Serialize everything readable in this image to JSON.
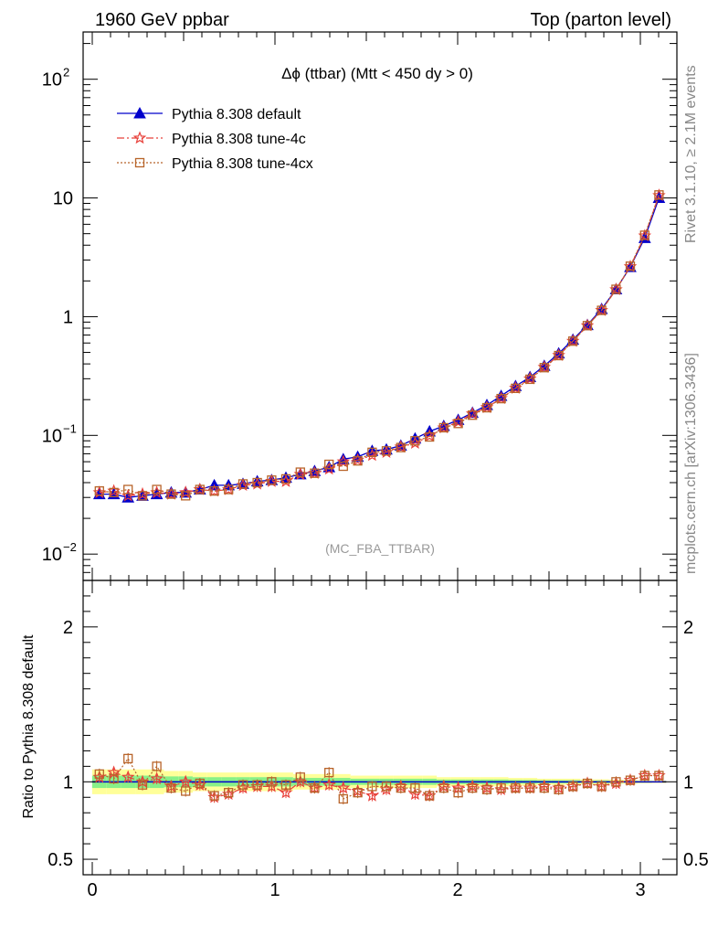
{
  "header": {
    "left": "1960 GeV ppbar",
    "right": "Top (parton level)"
  },
  "side_labels": {
    "rivet": "Rivet 3.1.10, ≥ 2.1M events",
    "mcplots": "mcplots.cern.ch [arXiv:1306.3436]"
  },
  "chart_data": [
    {
      "type": "line",
      "title": "Δϕ (ttbar) (Mtt < 450 dy > 0)",
      "watermark": "(MC_FBA_TTBAR)",
      "yscale": "log",
      "xlim": [
        -0.05,
        3.2
      ],
      "ylim": [
        0.006,
        250
      ],
      "yticks": [
        {
          "v": 0.01,
          "base": "10",
          "exp": "−2"
        },
        {
          "v": 0.1,
          "base": "10",
          "exp": "−1"
        },
        {
          "v": 1,
          "base": "1",
          "exp": ""
        },
        {
          "v": 10,
          "base": "10",
          "exp": ""
        },
        {
          "v": 100,
          "base": "10",
          "exp": "2"
        }
      ],
      "legend_position": "top-left",
      "x": [
        0.039,
        0.118,
        0.196,
        0.275,
        0.353,
        0.432,
        0.511,
        0.589,
        0.668,
        0.746,
        0.825,
        0.903,
        0.982,
        1.06,
        1.139,
        1.217,
        1.296,
        1.374,
        1.453,
        1.532,
        1.61,
        1.689,
        1.767,
        1.846,
        1.924,
        2.003,
        2.081,
        2.16,
        2.238,
        2.317,
        2.396,
        2.474,
        2.553,
        2.631,
        2.71,
        2.788,
        2.867,
        2.945,
        3.024,
        3.102
      ],
      "series": [
        {
          "name": "Pythia 8.308 default",
          "color": "#0000cc",
          "marker": "triangle",
          "dash": "solid",
          "values": [
            0.032,
            0.032,
            0.03,
            0.031,
            0.032,
            0.033,
            0.033,
            0.035,
            0.038,
            0.038,
            0.039,
            0.041,
            0.042,
            0.044,
            0.047,
            0.05,
            0.054,
            0.063,
            0.066,
            0.074,
            0.076,
            0.082,
            0.094,
            0.108,
            0.12,
            0.135,
            0.155,
            0.18,
            0.215,
            0.26,
            0.31,
            0.385,
            0.49,
            0.64,
            0.85,
            1.16,
            1.7,
            2.62,
            4.6,
            10.0
          ]
        },
        {
          "name": "Pythia 8.308 tune-4c",
          "color": "#e8403a",
          "marker": "star",
          "dash": "8,3,2,3",
          "values": [
            0.033,
            0.034,
            0.031,
            0.032,
            0.033,
            0.032,
            0.033,
            0.035,
            0.034,
            0.035,
            0.038,
            0.039,
            0.041,
            0.041,
            0.047,
            0.048,
            0.052,
            0.06,
            0.062,
            0.068,
            0.072,
            0.08,
            0.086,
            0.099,
            0.116,
            0.13,
            0.152,
            0.172,
            0.205,
            0.25,
            0.3,
            0.375,
            0.472,
            0.622,
            0.84,
            1.13,
            1.69,
            2.64,
            4.8,
            10.5
          ]
        },
        {
          "name": "Pythia 8.308 tune-4cx",
          "color": "#b8642a",
          "marker": "square",
          "dash": "2,2",
          "values": [
            0.034,
            0.033,
            0.035,
            0.031,
            0.035,
            0.032,
            0.031,
            0.035,
            0.034,
            0.035,
            0.039,
            0.04,
            0.042,
            0.043,
            0.049,
            0.048,
            0.057,
            0.055,
            0.061,
            0.072,
            0.074,
            0.079,
            0.09,
            0.097,
            0.116,
            0.126,
            0.148,
            0.171,
            0.204,
            0.249,
            0.297,
            0.372,
            0.47,
            0.622,
            0.84,
            1.13,
            1.7,
            2.66,
            4.85,
            10.6
          ]
        }
      ]
    },
    {
      "type": "line",
      "ylabel": "Ratio to Pythia 8.308 default",
      "yscale": "linear",
      "xlim": [
        -0.05,
        3.2
      ],
      "ylim": [
        0.4,
        2.3
      ],
      "xticks": [
        0,
        1,
        2,
        3
      ],
      "yticks_labels": {
        "0.5": "0.5",
        "1": "1",
        "2": "2"
      },
      "x": [
        0.039,
        0.118,
        0.196,
        0.275,
        0.353,
        0.432,
        0.511,
        0.589,
        0.668,
        0.746,
        0.825,
        0.903,
        0.982,
        1.06,
        1.139,
        1.217,
        1.296,
        1.374,
        1.453,
        1.532,
        1.61,
        1.689,
        1.767,
        1.846,
        1.924,
        2.003,
        2.081,
        2.16,
        2.238,
        2.317,
        2.396,
        2.474,
        2.553,
        2.631,
        2.71,
        2.788,
        2.867,
        2.945,
        3.024,
        3.102
      ],
      "band_green": [
        0.04,
        0.04,
        0.04,
        0.04,
        0.04,
        0.035,
        0.035,
        0.03,
        0.03,
        0.03,
        0.03,
        0.03,
        0.03,
        0.03,
        0.025,
        0.025,
        0.025,
        0.025,
        0.02,
        0.02,
        0.02,
        0.02,
        0.02,
        0.02,
        0.015,
        0.015,
        0.015,
        0.015,
        0.015,
        0.012,
        0.012,
        0.01,
        0.01,
        0.01,
        0.008,
        0.008,
        0.007,
        0.006,
        0.005,
        0.004
      ],
      "band_yellow": [
        0.08,
        0.08,
        0.08,
        0.08,
        0.08,
        0.07,
        0.07,
        0.06,
        0.06,
        0.06,
        0.06,
        0.06,
        0.06,
        0.06,
        0.05,
        0.05,
        0.05,
        0.05,
        0.04,
        0.04,
        0.04,
        0.04,
        0.04,
        0.04,
        0.03,
        0.03,
        0.03,
        0.03,
        0.03,
        0.025,
        0.025,
        0.02,
        0.02,
        0.02,
        0.016,
        0.016,
        0.014,
        0.012,
        0.01,
        0.008
      ],
      "series": [
        {
          "name": "Pythia 8.308 tune-4c",
          "color": "#e8403a",
          "marker": "star",
          "dash": "8,3,2,3",
          "values": [
            1.03,
            1.06,
            1.03,
            1.0,
            1.02,
            0.97,
            1.0,
            0.98,
            0.9,
            0.92,
            0.96,
            0.97,
            0.97,
            0.93,
            1.0,
            0.96,
            0.98,
            0.96,
            0.94,
            0.91,
            0.95,
            0.97,
            0.92,
            0.91,
            0.97,
            0.96,
            0.97,
            0.96,
            0.95,
            0.96,
            0.96,
            0.97,
            0.96,
            0.97,
            0.99,
            0.97,
            0.99,
            1.01,
            1.04,
            1.04
          ]
        },
        {
          "name": "Pythia 8.308 tune-4cx",
          "color": "#b8642a",
          "marker": "square",
          "dash": "2,2",
          "values": [
            1.05,
            1.02,
            1.15,
            0.98,
            1.1,
            0.96,
            0.94,
            0.99,
            0.91,
            0.93,
            0.98,
            0.98,
            1.0,
            0.98,
            1.03,
            0.96,
            1.06,
            0.89,
            0.93,
            0.97,
            0.97,
            0.96,
            0.96,
            0.91,
            0.96,
            0.93,
            0.96,
            0.95,
            0.96,
            0.96,
            0.96,
            0.96,
            0.95,
            0.97,
            0.99,
            0.97,
            1.0,
            1.01,
            1.04,
            1.04
          ]
        }
      ]
    }
  ]
}
